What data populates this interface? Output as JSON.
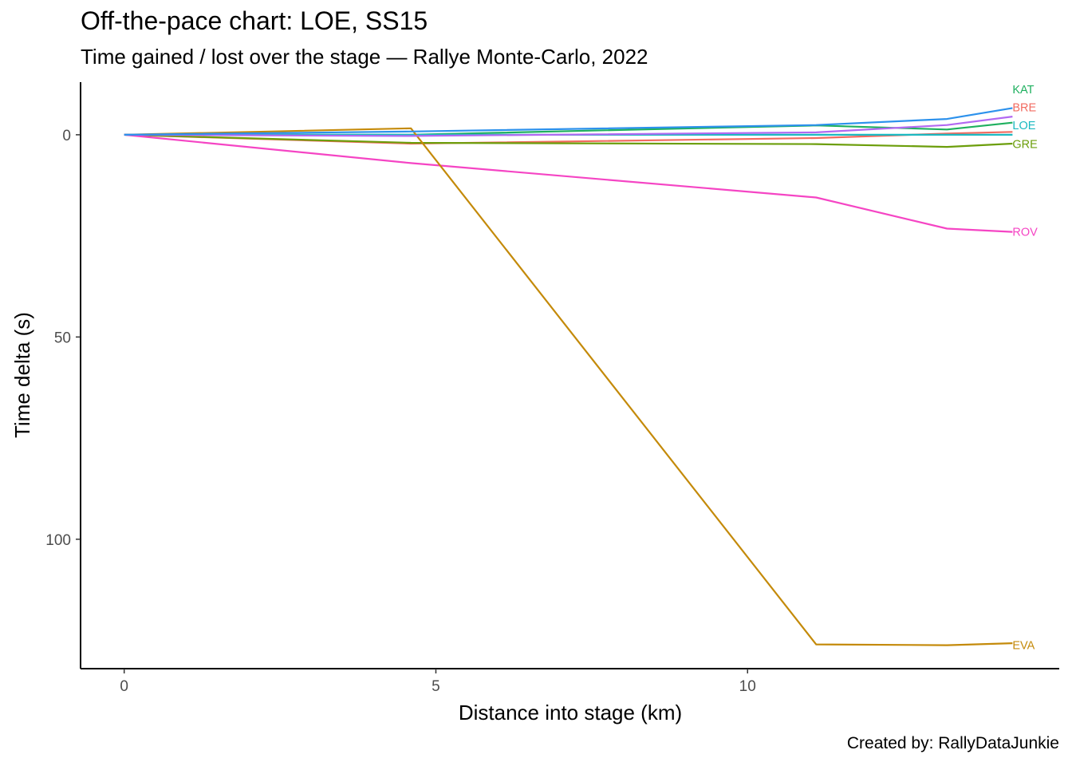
{
  "chart_data": {
    "type": "line",
    "title": "Off-the-pace chart: LOE, SS15",
    "subtitle": "Time gained / lost over the stage — Rallye Monte-Carlo, 2022",
    "caption": "Created by: RallyDataJunkie",
    "xlabel": "Distance into stage (km)",
    "ylabel": "Time delta (s)",
    "xlim": [
      -0.7,
      15
    ],
    "ylim": [
      -13,
      132
    ],
    "y_reversed": true,
    "x_ticks": [
      0,
      5,
      10
    ],
    "y_ticks": [
      0,
      50,
      100
    ],
    "grid": false,
    "legend": "none (series labelled at line ends)",
    "series": [
      {
        "name": "KAT",
        "color": "#1fb05f",
        "x": [
          0,
          4.6,
          11.1,
          13.2,
          14.25
        ],
        "y": [
          0,
          0,
          -2.3,
          -1.3,
          -3.0
        ],
        "label_y": -11.2
      },
      {
        "name": "BRE",
        "color": "#f26b60",
        "x": [
          0,
          4.6,
          11.1,
          13.2,
          14.25
        ],
        "y": [
          0,
          2.2,
          0.8,
          -0.3,
          -0.7
        ],
        "label_y": -6.8
      },
      {
        "name": "LOE",
        "color": "#1cb9c1",
        "x": [
          0,
          4.6,
          11.1,
          13.2,
          14.25
        ],
        "y": [
          0,
          0,
          0,
          0,
          0
        ],
        "label_y": -2.3
      },
      {
        "name": "GRE",
        "color": "#6c9e0b",
        "x": [
          0,
          4.6,
          11.1,
          13.2,
          14.25
        ],
        "y": [
          0,
          2.0,
          2.3,
          3.0,
          2.2
        ],
        "label_y": 2.3
      },
      {
        "name": "ROV",
        "color": "#f545c4",
        "x": [
          0,
          4.6,
          11.1,
          13.2,
          14.25
        ],
        "y": [
          0,
          7.0,
          15.5,
          23.2,
          24.0
        ],
        "label_y": 24.0
      },
      {
        "name": "EVA",
        "color": "#c48a0a",
        "x": [
          0,
          4.6,
          11.1,
          13.2,
          14.25
        ],
        "y": [
          0,
          -1.6,
          126.0,
          126.2,
          125.7
        ],
        "label_y": 126.2
      },
      {
        "name": "",
        "color": "#b269f2",
        "x": [
          0,
          4.6,
          11.1,
          13.2,
          14.25
        ],
        "y": [
          0,
          0.3,
          -0.6,
          -2.4,
          -4.5
        ]
      },
      {
        "name": "",
        "color": "#2c91ec",
        "x": [
          0,
          4.6,
          11.1,
          13.2,
          14.25
        ],
        "y": [
          0,
          -0.8,
          -2.4,
          -3.9,
          -6.6
        ]
      }
    ]
  }
}
